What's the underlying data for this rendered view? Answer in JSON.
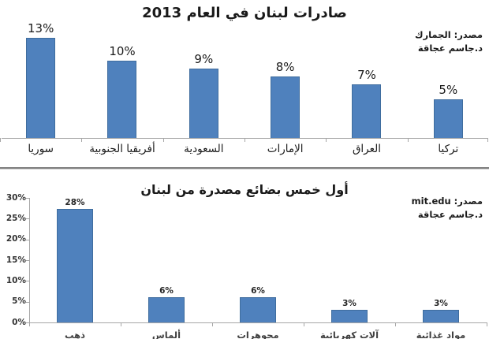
{
  "style": {
    "bar_fill": "#4F81BD",
    "bar_border": "#3F6D9E",
    "axis_color": "#A6A6A6",
    "background": "#FFFFFF",
    "text_color": "#1A1A1A"
  },
  "chart_data": [
    {
      "type": "bar",
      "title": "صادرات لبنان في العام 2013",
      "source": [
        "مصدر: الجمارك",
        "د.جاسم عجاقة"
      ],
      "categories": [
        "سوريا",
        "أفريقيا الجنوبية",
        "السعودية",
        "الإمارات",
        "العراق",
        "تركيا"
      ],
      "values": [
        13,
        10,
        9,
        8,
        7,
        5
      ],
      "value_labels": [
        "13%",
        "10%",
        "9%",
        "8%",
        "7%",
        "5%"
      ],
      "unit": "%",
      "y_axis_visible": false,
      "grid": false,
      "legend": "none",
      "data_labels_position": "above bars"
    },
    {
      "type": "bar",
      "title": "أول خمس بضائع مصدرة من لبنان",
      "source": [
        "مصدر: mit.edu",
        "د.جاسم عجاقة"
      ],
      "categories": [
        "ذهب",
        "ألماس",
        "مجوهرات",
        "آلات كهربائية",
        "مواد غذائية"
      ],
      "values": [
        28,
        6,
        6,
        3,
        3
      ],
      "value_labels": [
        "28%",
        "6%",
        "6%",
        "3%",
        "3%"
      ],
      "unit": "%",
      "ylim": [
        0,
        30
      ],
      "y_ticks": [
        "30%",
        "25%",
        "20%",
        "15%",
        "10%",
        "5%",
        "0%"
      ],
      "y_axis_visible": true,
      "grid": false,
      "legend": "none",
      "data_labels_position": "above bars"
    }
  ]
}
